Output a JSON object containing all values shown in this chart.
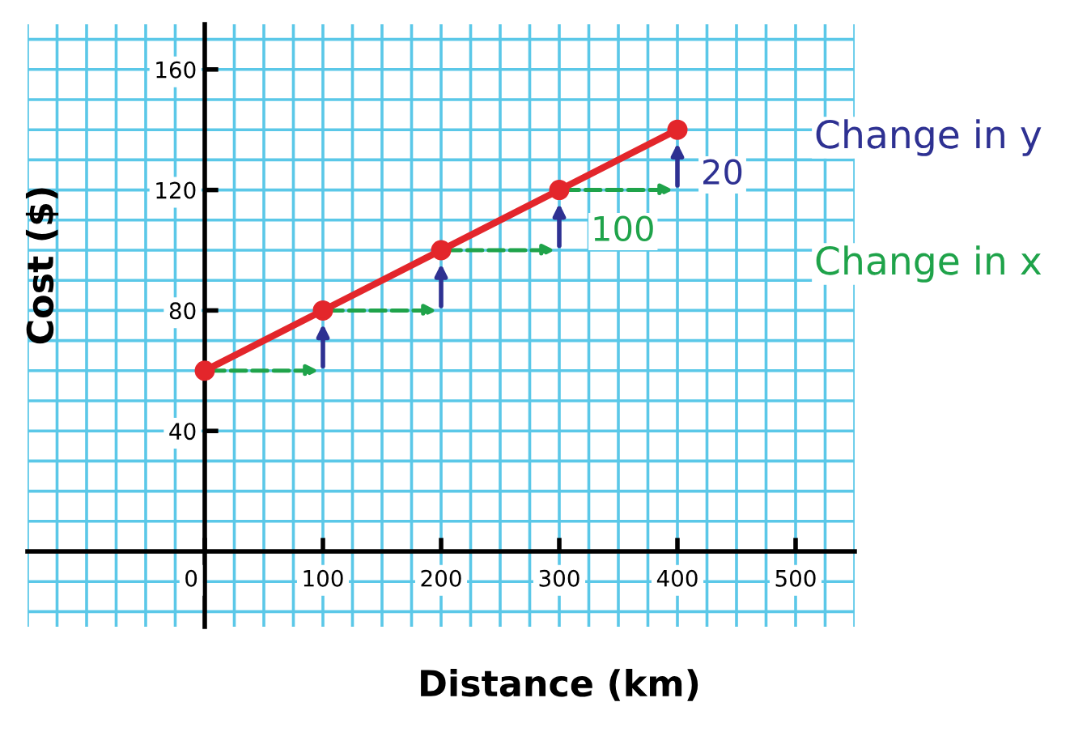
{
  "chart_data": {
    "type": "line",
    "xlabel": "Distance (km)",
    "ylabel": "Cost ($)",
    "x": [
      0,
      100,
      200,
      300,
      400
    ],
    "series": [
      {
        "color": "#e3262b",
        "values": [
          60,
          80,
          100,
          120,
          140
        ]
      }
    ],
    "marker": "circle",
    "line_style": "solid",
    "grid": true,
    "xlim": [
      -150,
      550
    ],
    "ylim": [
      -25,
      175
    ],
    "xticks": [
      0,
      100,
      200,
      300,
      400,
      500
    ],
    "yticks": [
      40,
      80,
      120,
      160
    ],
    "annotations": [
      "20",
      "100",
      "Change in y",
      "Change in x"
    ]
  }
}
